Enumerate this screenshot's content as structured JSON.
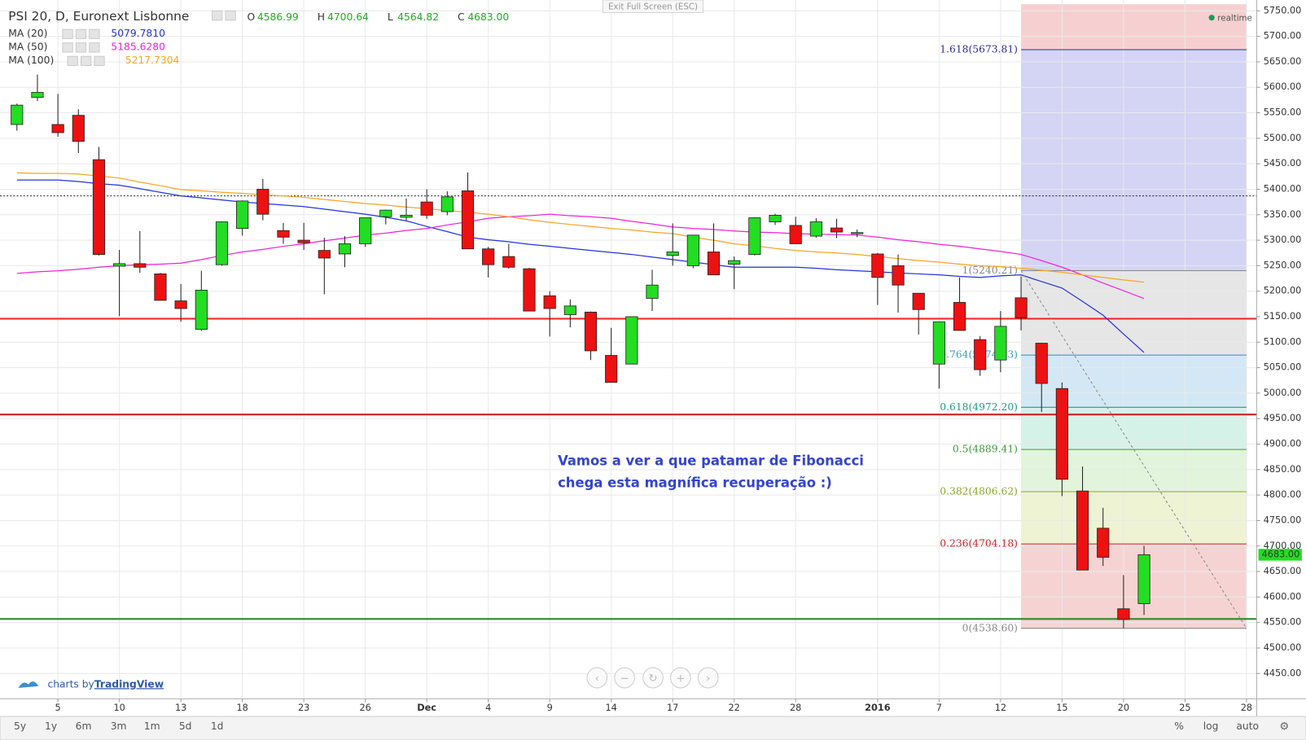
{
  "chart_data": {
    "type": "candlestick",
    "title": "PSI 20, D, Euronext Lisbonne",
    "ohlc": [
      {
        "name": "O",
        "value": 4586.99
      },
      {
        "name": "H",
        "value": 4700.64
      },
      {
        "name": "L",
        "value": 4564.82
      },
      {
        "name": "C",
        "value": {
          "value": 4683,
          "label": "4683.00"
        }
      }
    ],
    "categories": [
      null,
      null,
      "5",
      null,
      null,
      "10",
      null,
      null,
      "13",
      null,
      null,
      "18",
      null,
      null,
      "23",
      null,
      null,
      "26",
      null,
      null,
      "Dec",
      null,
      null,
      "4",
      null,
      null,
      "9",
      null,
      null,
      "14",
      null,
      null,
      "17",
      null,
      null,
      "22",
      null,
      null,
      "28",
      null,
      null,
      null,
      "2016",
      null,
      null,
      "7",
      null,
      null,
      "12",
      null,
      null,
      "15",
      null,
      null,
      "20",
      null,
      null,
      "25",
      null,
      null,
      "28"
    ],
    "open": [
      5527,
      5580,
      5527,
      5545,
      5458,
      5249,
      5254,
      5234,
      5181,
      5125,
      5252,
      5323,
      5400,
      5319,
      5300,
      5280,
      5273,
      5293,
      5346,
      5345,
      5375,
      5356,
      5397,
      5283,
      5268,
      5244,
      5191,
      5154,
      5159,
      5074,
      5057,
      5186,
      5270,
      5250,
      5277,
      5253,
      5272,
      5336,
      5329,
      5308,
      5324,
      5314,
      5273,
      5250,
      5196,
      5057,
      5178,
      5105,
      5065,
      5187,
      5098,
      5009,
      4808,
      4735,
      4577,
      4586.99,
      null,
      null,
      null,
      null,
      null
    ],
    "high": [
      5568,
      5625,
      5587,
      5557,
      5483,
      5281,
      5318,
      5236,
      5214,
      5240,
      5337,
      5378,
      5420,
      5334,
      5334,
      5305,
      5308,
      5344,
      5360,
      5382,
      5400,
      5396,
      5433,
      5287,
      5293,
      5246,
      5200,
      5184,
      5160,
      5128,
      5150,
      5242,
      5333,
      5310,
      5333,
      5268,
      5345,
      5352,
      5346,
      5343,
      5342,
      5321,
      5275,
      5272,
      5196,
      5140,
      5227,
      5112,
      5161,
      5229,
      5098,
      5021,
      4856,
      4775,
      4643,
      4700.64,
      null,
      null,
      null,
      null,
      null
    ],
    "low": [
      5515,
      5573,
      5503,
      5471,
      5270,
      5151,
      5236,
      5182,
      5140,
      5122,
      5250,
      5309,
      5339,
      5293,
      5281,
      5194,
      5247,
      5287,
      5331,
      5339,
      5342,
      5349,
      5283,
      5227,
      5244,
      5161,
      5111,
      5129,
      5065,
      5021,
      5057,
      5161,
      5250,
      5245,
      5232,
      5204,
      5270,
      5330,
      5293,
      5305,
      5304,
      5306,
      5173,
      5158,
      5115,
      5009,
      5123,
      5034,
      5041,
      5123,
      4963,
      4798,
      4653,
      4661,
      4538.6,
      4564.82,
      null,
      null,
      null,
      null,
      null
    ],
    "close": [
      5565,
      5590,
      5511,
      5494,
      5272,
      5254,
      5247,
      5182,
      5166,
      5202,
      5336,
      5377,
      5351,
      5306,
      5295,
      5265,
      5293,
      5344,
      5359,
      5349,
      5349,
      5385,
      5283,
      5252,
      5247,
      5161,
      5166,
      5171,
      5083,
      5021,
      5150,
      5212,
      5277,
      5310,
      5232,
      5260,
      5344,
      5349,
      5293,
      5336,
      5316,
      5315,
      5227,
      5212,
      5164,
      5140,
      5123,
      5046,
      5131,
      5148,
      5019,
      4831,
      4653,
      4678,
      4556,
      4683,
      null,
      null,
      null,
      null,
      null
    ],
    "up_color": "#22dd22",
    "down_color": "#ee1111",
    "wick_color": "#222222",
    "series": [
      {
        "name": "MA (20)",
        "color": "#2233dd",
        "legend_value": {
          "value": 5079.781,
          "label": "5079.7810"
        },
        "values": [
          5418,
          5418,
          5418,
          5415,
          5411,
          5408,
          5401,
          5394,
          5387,
          5383,
          5379,
          5375,
          5372,
          5369,
          5366,
          5361,
          5356,
          5351,
          5345,
          5338,
          5327,
          5317,
          5306,
          5301,
          5297,
          5292,
          5288,
          5284,
          5280,
          5276,
          5272,
          5267,
          5262,
          5257,
          5252,
          5247,
          5247,
          5247,
          5247,
          5245,
          5242,
          5240,
          5238,
          5236,
          5234,
          5232,
          5229,
          5227,
          5230,
          5232,
          5219,
          5206,
          5180,
          5153,
          5116,
          5079.781,
          null,
          null,
          null,
          null,
          null
        ]
      },
      {
        "name": "MA (50)",
        "color": "#ee22dd",
        "legend_value": {
          "value": 5185.628,
          "label": "5185.6280"
        },
        "values": [
          5235,
          5238,
          5240,
          5243,
          5247,
          5250,
          5252,
          5253,
          5255,
          5262,
          5270,
          5277,
          5282,
          5288,
          5293,
          5299,
          5304,
          5310,
          5314,
          5319,
          5323,
          5330,
          5336,
          5343,
          5346,
          5348,
          5351,
          5348,
          5346,
          5343,
          5337,
          5332,
          5326,
          5323,
          5321,
          5318,
          5316,
          5315,
          5313,
          5312,
          5311,
          5310,
          5306,
          5301,
          5297,
          5292,
          5288,
          5283,
          5278,
          5272,
          5260,
          5247,
          5232,
          5216,
          5201,
          5185.628,
          null,
          null,
          null,
          null,
          null
        ]
      },
      {
        "name": "MA (100)",
        "color": "#f5a623",
        "legend_value": {
          "value": 5217.7304,
          "label": "5217.7304"
        },
        "values": [
          5432,
          5431,
          5431,
          5430,
          5426,
          5422,
          5414,
          5407,
          5399,
          5397,
          5394,
          5392,
          5389,
          5387,
          5384,
          5380,
          5376,
          5372,
          5369,
          5365,
          5362,
          5358,
          5355,
          5351,
          5346,
          5340,
          5335,
          5331,
          5327,
          5323,
          5320,
          5316,
          5313,
          5306,
          5300,
          5293,
          5289,
          5284,
          5280,
          5277,
          5275,
          5272,
          5268,
          5264,
          5260,
          5257,
          5253,
          5250,
          5248,
          5245,
          5241,
          5237,
          5232,
          5227,
          5222,
          5217.7304,
          null,
          null,
          null,
          null,
          null
        ]
      }
    ],
    "fibonacci": {
      "top_fill": "#f6d0d0",
      "trend_color": "#888888",
      "levels": [
        {
          "value": 5673.81,
          "label": "1.618(5673.81)",
          "color": "#2b2b99",
          "fill": "#d4d4f4"
        },
        {
          "value": 5240.21,
          "label": "1(5240.21)",
          "color": "#888888",
          "fill": "#e6e6e6"
        },
        {
          "value": 5074.63,
          "label": "0.764(5074.63)",
          "color": "#3a9ac4",
          "fill": "#d3e8f4"
        },
        {
          "value": 4972.2,
          "label": "0.618(4972.20)",
          "color": "#1f9c82",
          "fill": "#d5f2e9"
        },
        {
          "value": 4889.41,
          "label": "0.5(4889.41)",
          "color": "#3a9a3a",
          "fill": "#e2f4dc"
        },
        {
          "value": 4806.62,
          "label": "0.382(4806.62)",
          "color": "#8aa82a",
          "fill": "#eef3d4"
        },
        {
          "value": 4704.18,
          "label": "0.236(4704.18)",
          "color": "#cc2222",
          "fill": "#f6d3d3"
        },
        {
          "value": 4538.6,
          "label": "0(4538.60)",
          "color": "#888888",
          "fill": null
        }
      ]
    },
    "hlines": [
      {
        "value": 5387,
        "color": "#222222",
        "style": "dotted"
      },
      {
        "value": 5146,
        "color": "#ee2222",
        "style": "solid"
      },
      {
        "value": 4958,
        "color": "#cc2222",
        "style": "solid"
      },
      {
        "value": 4557,
        "color": "#2a8a2a",
        "style": "solid"
      }
    ],
    "annotation": [
      "Vamos a ver a que patamar de Fibonacci",
      "chega esta magnífica recuperação :)"
    ],
    "ylim": [
      4402,
      5763
    ],
    "yticks": [
      {
        "value": 4450,
        "label": "4450.00"
      },
      {
        "value": 4500,
        "label": "4500.00"
      },
      {
        "value": 4550,
        "label": "4550.00"
      },
      {
        "value": 4600,
        "label": "4600.00"
      },
      {
        "value": 4650,
        "label": "4650.00"
      },
      {
        "value": 4700,
        "label": "4700.00"
      },
      {
        "value": 4750,
        "label": "4750.00"
      },
      {
        "value": 4800,
        "label": "4800.00"
      },
      {
        "value": 4850,
        "label": "4850.00"
      },
      {
        "value": 4900,
        "label": "4900.00"
      },
      {
        "value": 4950,
        "label": "4950.00"
      },
      {
        "value": 5000,
        "label": "5000.00"
      },
      {
        "value": 5050,
        "label": "5050.00"
      },
      {
        "value": 5100,
        "label": "5100.00"
      },
      {
        "value": 5150,
        "label": "5150.00"
      },
      {
        "value": 5200,
        "label": "5200.00"
      },
      {
        "value": 5250,
        "label": "5250.00"
      },
      {
        "value": 5300,
        "label": "5300.00"
      },
      {
        "value": 5350,
        "label": "5350.00"
      },
      {
        "value": 5400,
        "label": "5400.00"
      },
      {
        "value": 5450,
        "label": "5450.00"
      },
      {
        "value": 5500,
        "label": "5500.00"
      },
      {
        "value": 5550,
        "label": "5550.00"
      },
      {
        "value": 5600,
        "label": "5600.00"
      },
      {
        "value": 5650,
        "label": "5650.00"
      },
      {
        "value": 5700,
        "label": "5700.00"
      },
      {
        "value": 5750,
        "label": "5750.00"
      }
    ],
    "grid": true
  },
  "ui": {
    "exit_full_screen": "Exit Full Screen (ESC)",
    "realtime": "realtime",
    "branding_prefix": "charts by",
    "branding": "TradingView",
    "ranges": [
      "5y",
      "1y",
      "6m",
      "3m",
      "1m",
      "5d",
      "1d"
    ],
    "scale_options": [
      "%",
      "log",
      "auto"
    ]
  }
}
